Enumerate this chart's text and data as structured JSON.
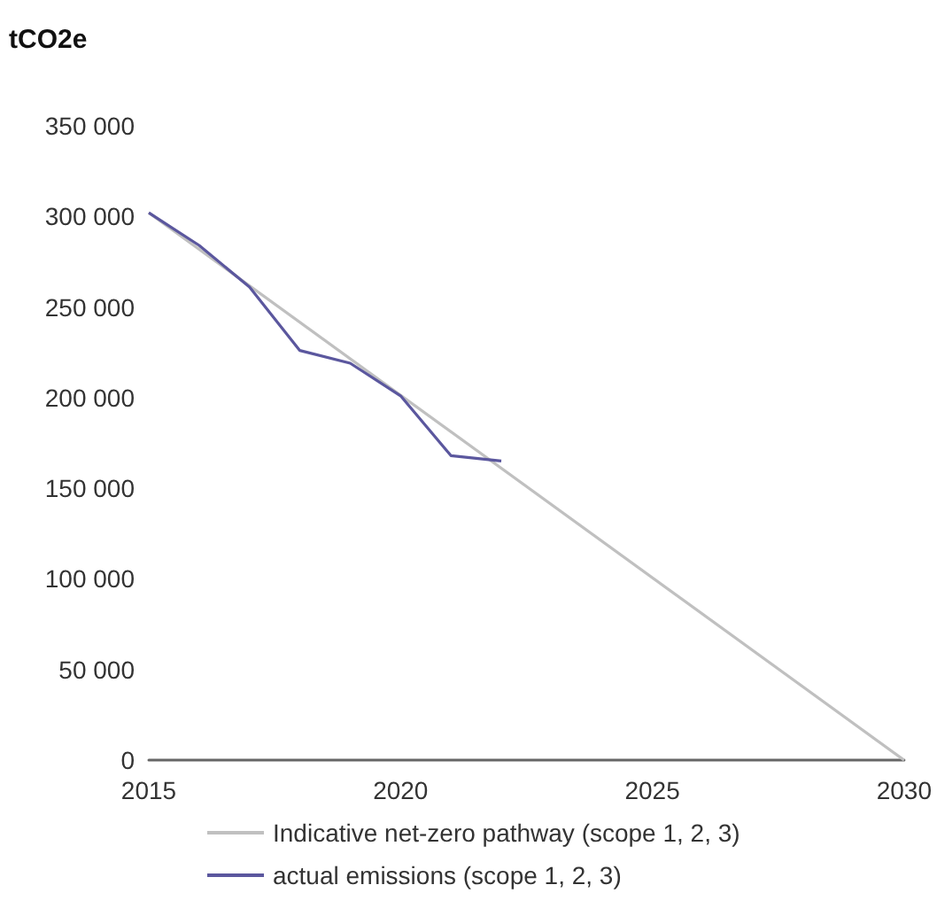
{
  "chart_data": {
    "type": "line",
    "ylabel": "tCO2e",
    "series": [
      {
        "name": "Indicative net-zero pathway (scope 1, 2, 3)",
        "color": "#c0c0c0",
        "x": [
          2015,
          2030
        ],
        "values": [
          302000,
          0
        ]
      },
      {
        "name": "actual emissions (scope 1, 2, 3)",
        "color": "#5b579e",
        "x": [
          2015,
          2016,
          2017,
          2018,
          2019,
          2020,
          2021,
          2022
        ],
        "values": [
          302000,
          284000,
          261000,
          226000,
          219000,
          201000,
          168000,
          165000
        ]
      }
    ],
    "xlim": [
      2015,
      2030
    ],
    "xticks": [
      2015,
      2020,
      2025,
      2030
    ],
    "ylim": [
      0,
      350000
    ],
    "yticks": [
      0,
      50000,
      100000,
      150000,
      200000,
      250000,
      300000,
      350000
    ],
    "grid": false,
    "legend": "bottom",
    "marker": "none",
    "line_style": "solid"
  }
}
